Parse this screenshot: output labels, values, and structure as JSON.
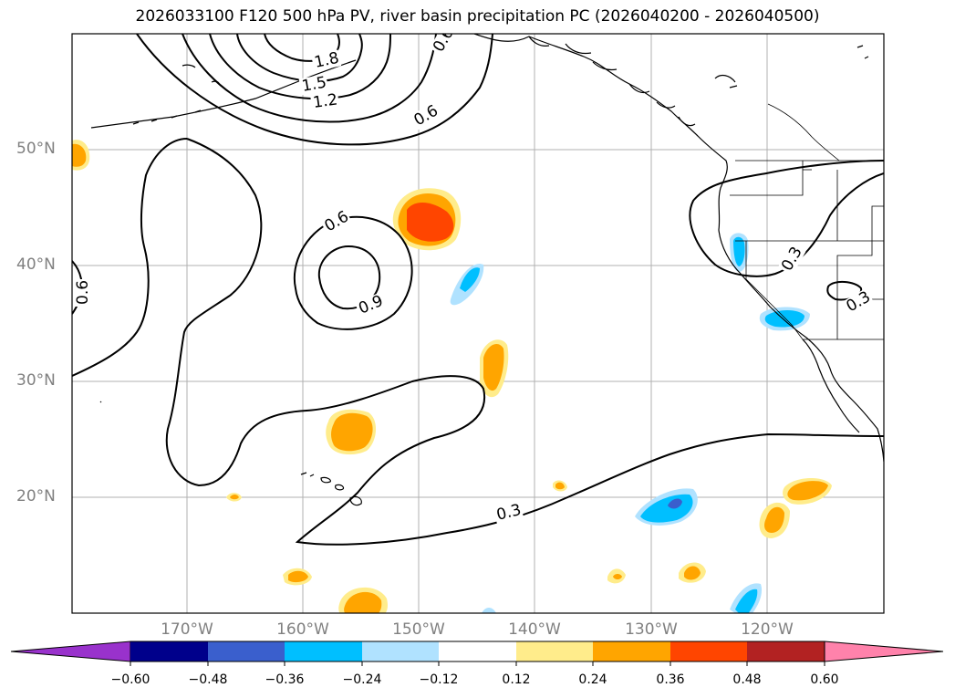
{
  "title": "2026033100 F120 500 hPa PV, river basin precipitation PC (2026040200 - 2026040500)",
  "map": {
    "lat_labels": [
      "50°N",
      "40°N",
      "30°N",
      "20°N"
    ],
    "lon_labels": [
      "170°W",
      "160°W",
      "150°W",
      "140°W",
      "130°W",
      "120°W"
    ],
    "extent": {
      "lon_min": -180,
      "lon_max": -110,
      "lat_min": 10,
      "lat_max": 60
    },
    "contour_labels": [
      "1.8",
      "1.5",
      "1.2",
      "0.6",
      "0.6",
      "0.9",
      "0.6",
      "0.3",
      "0.3",
      "0.3",
      "0.6"
    ],
    "contour_color": "#000000"
  },
  "colorbar": {
    "colors": [
      "#9932cc",
      "#00008b",
      "#3a5fcd",
      "#00bfff",
      "#b0e2ff",
      "#ffffff",
      "#ffec8b",
      "#ffa500",
      "#ff4500",
      "#b22222",
      "#ff82ab"
    ],
    "tick_labels": [
      "−0.60",
      "−0.48",
      "−0.36",
      "−0.24",
      "−0.12",
      "0.12",
      "0.24",
      "0.36",
      "0.48",
      "0.60"
    ]
  }
}
